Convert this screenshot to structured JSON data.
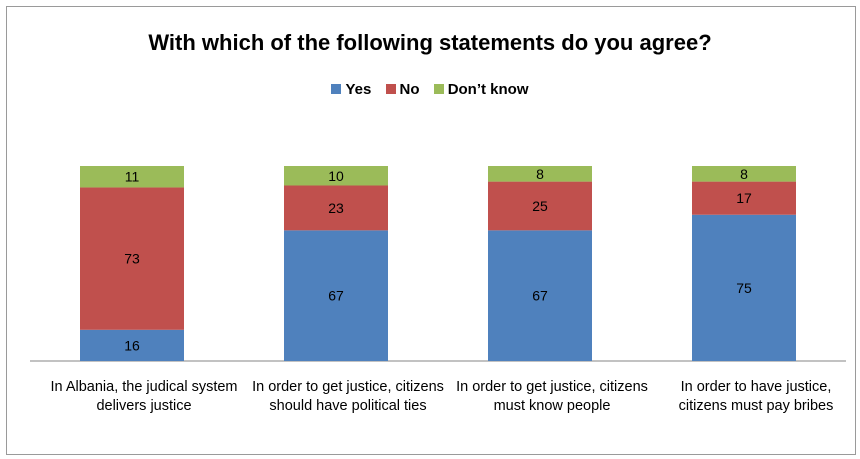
{
  "chart_data": {
    "type": "bar",
    "stacked": true,
    "title": "With which of the following statements do you agree?",
    "categories": [
      "In Albania, the judical system delivers justice",
      "In order to get justice, citizens should have political ties",
      "In order to get justice, citizens must know people",
      "In order to have justice, citizens must pay bribes"
    ],
    "series": [
      {
        "name": "Yes",
        "color": "#4F81BD",
        "values": [
          16,
          67,
          67,
          75
        ]
      },
      {
        "name": "No",
        "color": "#C0504D",
        "values": [
          73,
          23,
          25,
          17
        ]
      },
      {
        "name": "Don’t know",
        "color": "#9BBB59",
        "values": [
          11,
          10,
          8,
          8
        ]
      }
    ],
    "ylim": [
      0,
      100
    ],
    "grid": false,
    "legend_position": "top"
  }
}
